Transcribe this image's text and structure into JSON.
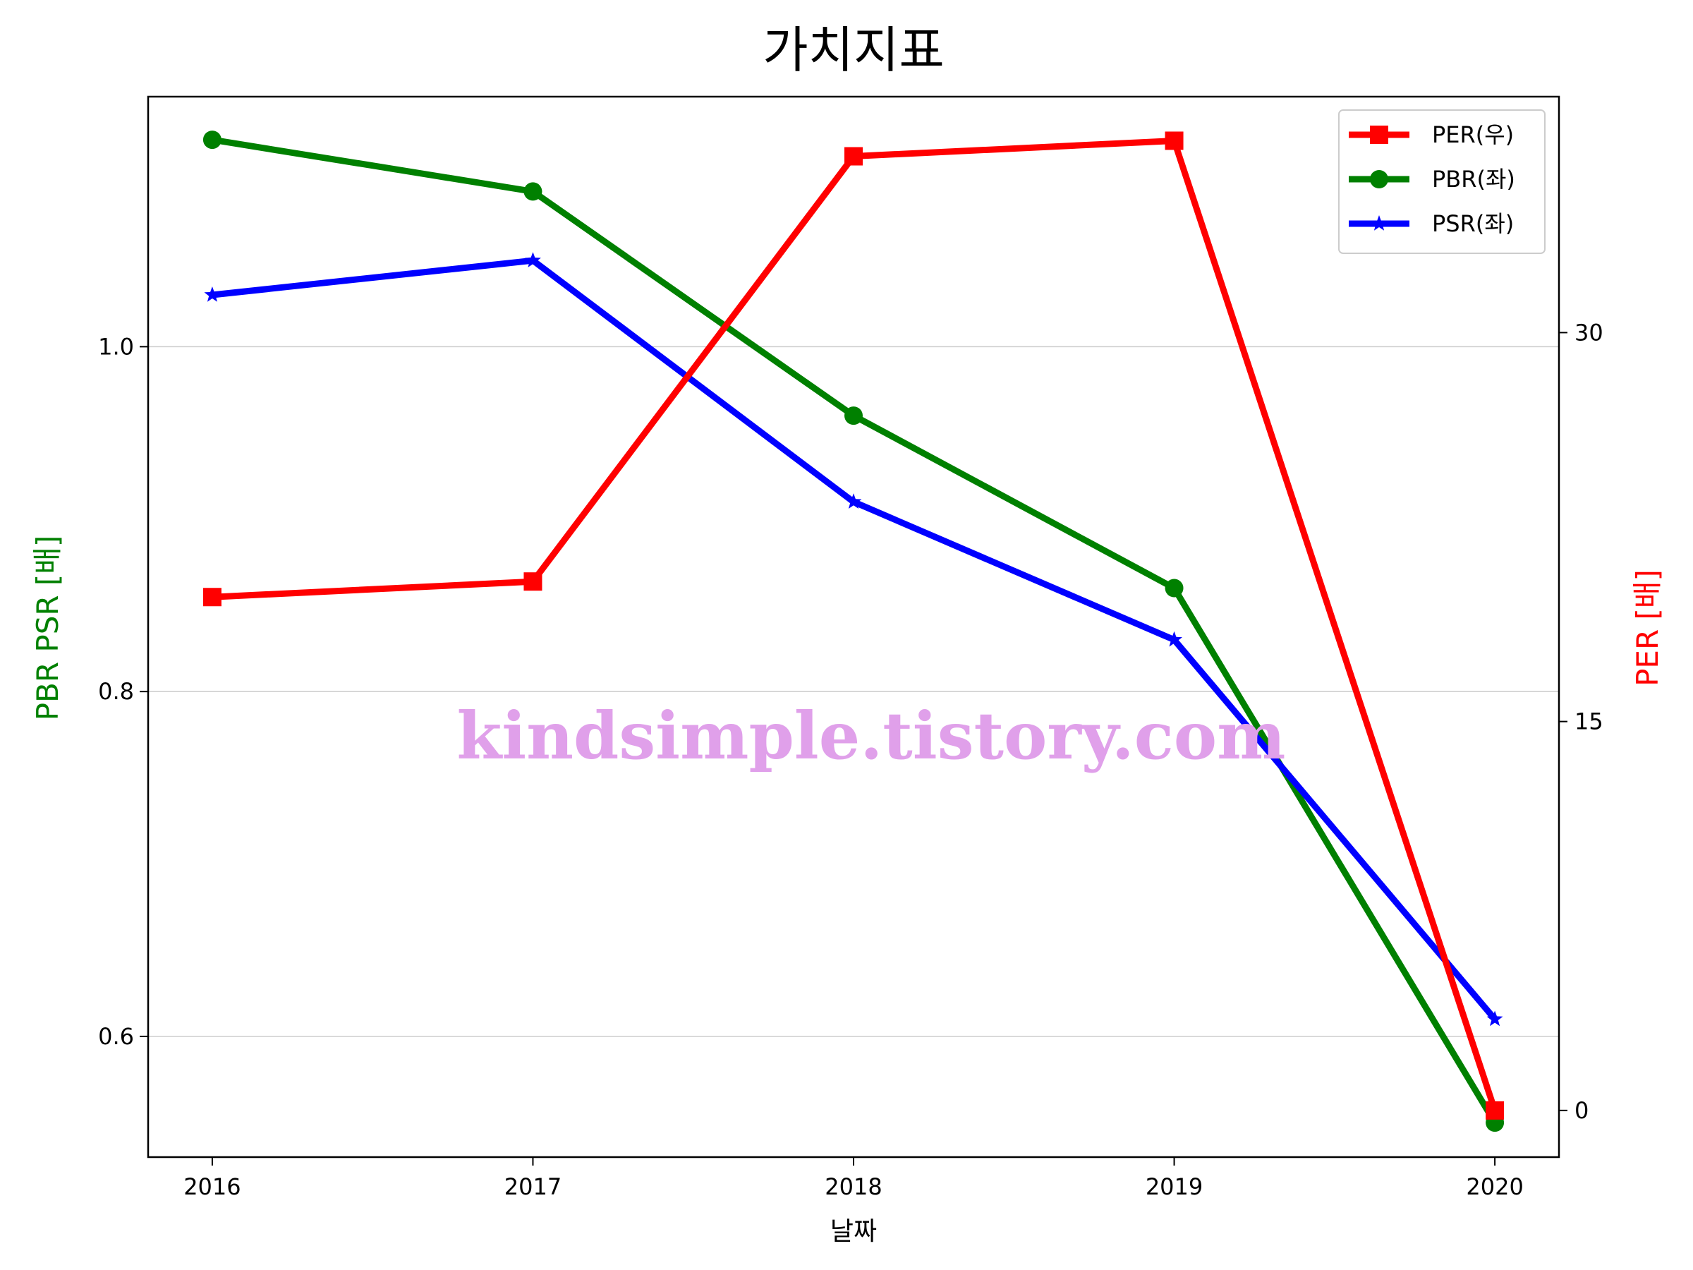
{
  "chart_data": {
    "type": "line",
    "title": "가치지표",
    "xlabel": "날짜",
    "ylabel_left": "PBR PSR [배]",
    "ylabel_right": "PER [배]",
    "categories": [
      "2016",
      "2017",
      "2018",
      "2019",
      "2020"
    ],
    "x": [
      2016,
      2017,
      2018,
      2019,
      2020
    ],
    "xlim": [
      2015.8,
      2020.2
    ],
    "ylim_left": [
      0.53,
      1.145
    ],
    "ylim_right": [
      -1.8,
      39.1
    ],
    "left_ticks": [
      "0.6",
      "0.8",
      "1.0"
    ],
    "left_tick_values": [
      0.6,
      0.8,
      1.0
    ],
    "right_ticks": [
      "0",
      "15",
      "30"
    ],
    "right_tick_values": [
      0,
      15,
      30
    ],
    "grid": "horizontal",
    "legend_position": "top-right",
    "series": [
      {
        "name": "PER(우)",
        "axis": "right",
        "color": "#ff0000",
        "marker": "square",
        "values": [
          19.8,
          20.4,
          36.8,
          37.4,
          0.0
        ]
      },
      {
        "name": "PBR(좌)",
        "axis": "left",
        "color": "#008000",
        "marker": "circle",
        "values": [
          1.12,
          1.09,
          0.96,
          0.86,
          0.55
        ]
      },
      {
        "name": "PSR(좌)",
        "axis": "left",
        "color": "#0000ff",
        "marker": "star",
        "values": [
          1.03,
          1.05,
          0.91,
          0.83,
          0.61
        ]
      }
    ]
  },
  "watermark": "kindsimple.tistory.com",
  "colors": {
    "left_axis_label": "#008000",
    "right_axis_label": "#ff0000",
    "watermark": "#e0a0ea",
    "grid": "#cccccc"
  }
}
